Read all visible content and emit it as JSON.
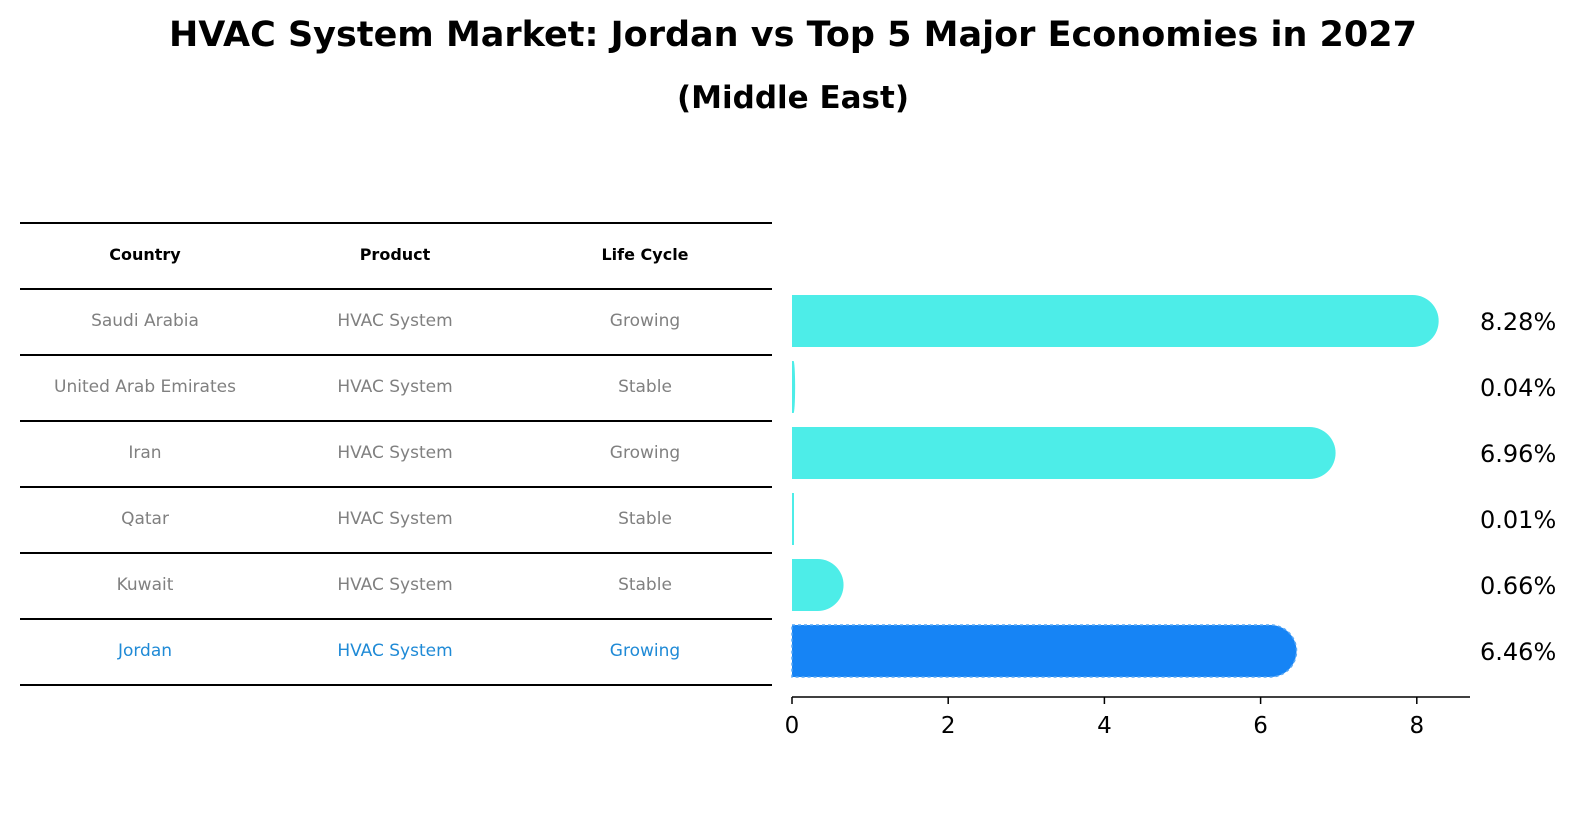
{
  "title": "HVAC System Market: Jordan vs Top 5 Major Economies in 2027",
  "subtitle": "(Middle East)",
  "table": {
    "headers": [
      "Country",
      "Product",
      "Life Cycle"
    ],
    "rows": [
      {
        "country": "Saudi Arabia",
        "product": "HVAC System",
        "life_cycle": "Growing"
      },
      {
        "country": "United Arab Emirates",
        "product": "HVAC System",
        "life_cycle": "Stable"
      },
      {
        "country": "Iran",
        "product": "HVAC System",
        "life_cycle": "Growing"
      },
      {
        "country": "Qatar",
        "product": "HVAC System",
        "life_cycle": "Stable"
      },
      {
        "country": "Kuwait",
        "product": "HVAC System",
        "life_cycle": "Stable"
      },
      {
        "country": "Jordan",
        "product": "HVAC System",
        "life_cycle": "Growing"
      }
    ]
  },
  "colors": {
    "bar": "#4dede8",
    "highlight_bar": "#1684f5",
    "highlight_text": "#1f8ad6",
    "row_text": "#808080"
  },
  "chart_data": {
    "type": "bar",
    "orientation": "horizontal",
    "categories": [
      "Saudi Arabia",
      "United Arab Emirates",
      "Iran",
      "Qatar",
      "Kuwait",
      "Jordan"
    ],
    "values": [
      8.28,
      0.04,
      6.96,
      0.01,
      0.66,
      6.46
    ],
    "value_labels": [
      "8.28%",
      "0.04%",
      "6.96%",
      "0.01%",
      "0.66%",
      "6.46%"
    ],
    "highlight": "Jordan",
    "title": "HVAC System Market: Jordan vs Top 5 Major Economies in 2027",
    "subtitle": "(Middle East)",
    "xlabel": "",
    "ylabel": "",
    "xlim": [
      0,
      8.7
    ],
    "xticks": [
      0,
      2,
      4,
      6,
      8
    ],
    "xtick_labels": [
      "0",
      "2",
      "4",
      "6",
      "8"
    ],
    "grid": false
  }
}
